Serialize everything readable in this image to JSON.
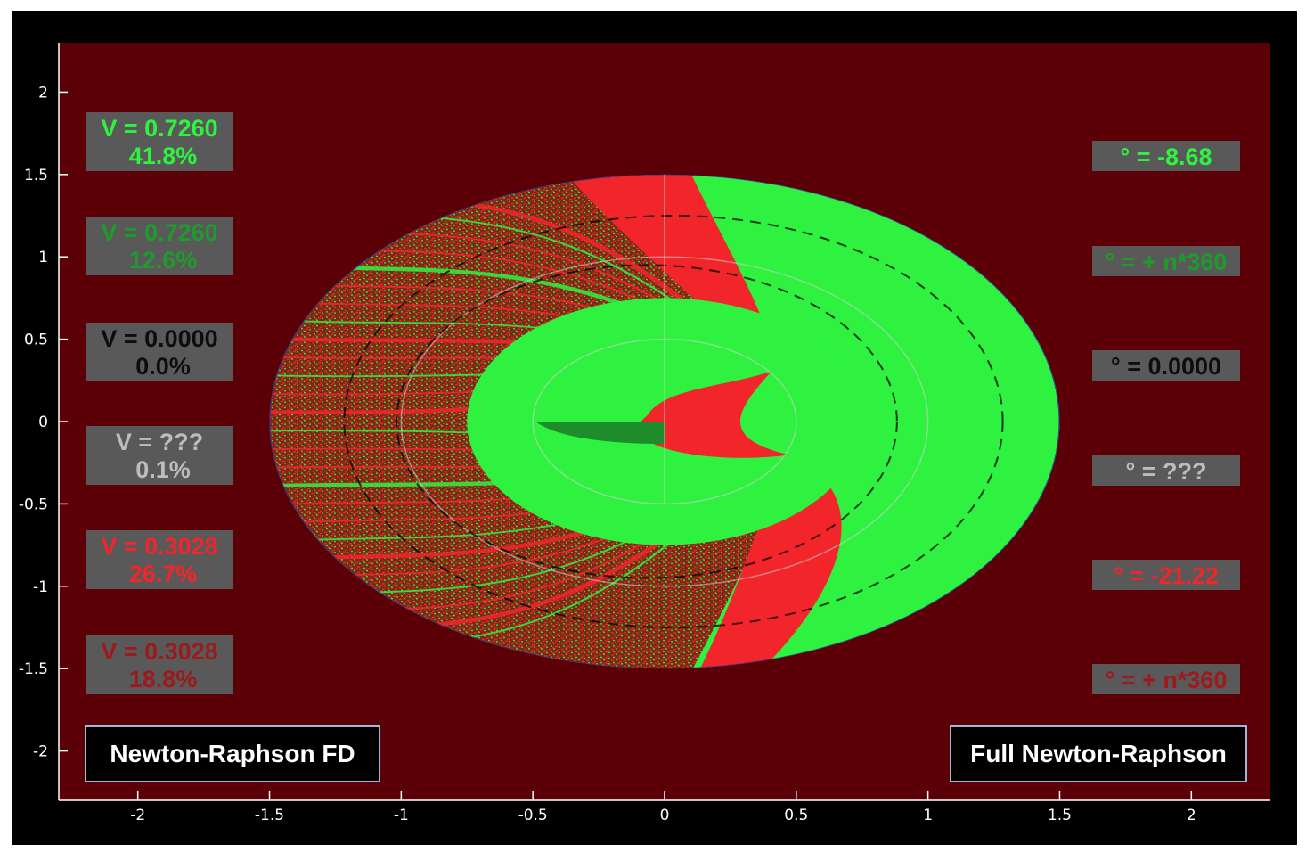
{
  "chart_data": {
    "type": "heatmap",
    "xlim": [
      -2.3,
      2.3
    ],
    "ylim": [
      -2.3,
      2.3
    ],
    "x_ticks": [
      "-2",
      "-1.5",
      "-1",
      "-0.5",
      "0",
      "0.5",
      "1",
      "1.5",
      "2"
    ],
    "y_ticks": [
      "2",
      "1.5",
      "1",
      "0.5",
      "0",
      "-0.5",
      "-1",
      "-1.5",
      "-2"
    ],
    "x_tick_values": [
      -2,
      -1.5,
      -1,
      -0.5,
      0,
      0.5,
      1,
      1.5,
      2
    ],
    "y_tick_values": [
      2,
      1.5,
      1,
      0.5,
      0,
      -0.5,
      -1,
      -1.5,
      -2
    ],
    "domain_radius": 1.5,
    "grid": true,
    "colors": {
      "background": "#5c0008",
      "converged_green": "#2ef23f",
      "converged_red": "#f2252b",
      "dark_green": "#1e8c2a",
      "box_fill": "#595959",
      "label_black_bg": "#000000"
    },
    "left_panel": {
      "title": "Newton-Raphson FD",
      "boxes": [
        {
          "line1": "V = 0.7260",
          "line2": "41.8%",
          "color": "#2ef23f"
        },
        {
          "line1": "V = 0.7260",
          "line2": "12.6%",
          "color": "#1f9a2c"
        },
        {
          "line1": "V  = 0.0000",
          "line2": "0.0%",
          "color": "#0d0d0d"
        },
        {
          "line1": "V  = ???",
          "line2": "0.1%",
          "color": "#bdbdbd"
        },
        {
          "line1": "V = 0.3028",
          "line2": "26.7%",
          "color": "#f2252b"
        },
        {
          "line1": "V = 0.3028",
          "line2": "18.8%",
          "color": "#9c1a1c"
        }
      ]
    },
    "right_panel": {
      "title": "Full Newton-Raphson",
      "boxes": [
        {
          "text": "° = -8.68",
          "color": "#2ef23f"
        },
        {
          "text": "° = + n*360",
          "color": "#1f9a2c"
        },
        {
          "text": "° = 0.0000",
          "color": "#0d0d0d"
        },
        {
          "text": "°  =   ???",
          "color": "#bdbdbd"
        },
        {
          "text": "° = -21.22",
          "color": "#f2252b"
        },
        {
          "text": "° = + n*360",
          "color": "#9c1a1c"
        }
      ]
    }
  }
}
